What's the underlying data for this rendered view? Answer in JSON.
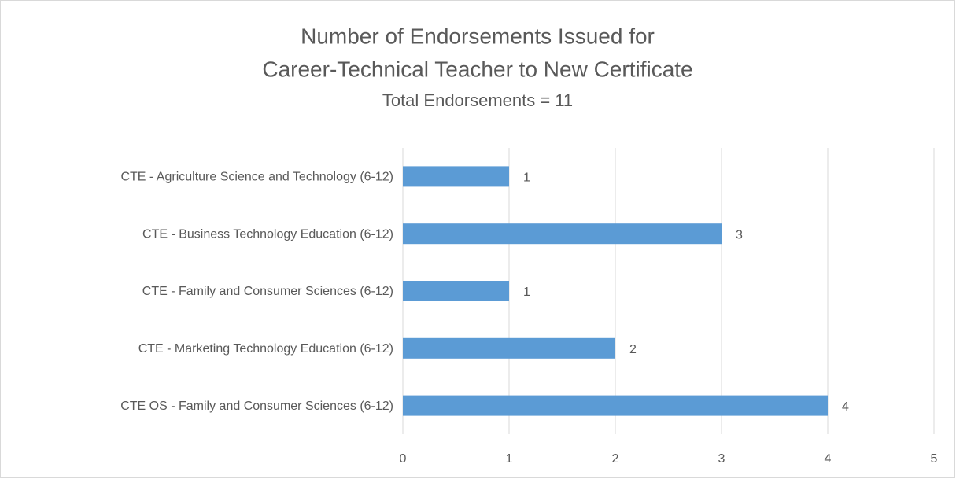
{
  "chart_data": {
    "type": "hbar",
    "title": [
      "Number of Endorsements Issued for",
      "Career-Technical Teacher to New Certificate"
    ],
    "subtitle": "Total Endorsements = 11",
    "categories": [
      "CTE - Agriculture Science and Technology (6-12)",
      "CTE - Business Technology Education (6-12)",
      "CTE - Family and Consumer Sciences (6-12)",
      "CTE - Marketing Technology Education (6-12)",
      "CTE OS - Family and Consumer Sciences (6-12)"
    ],
    "values": [
      1,
      3,
      1,
      2,
      4
    ],
    "color": "#5b9bd5",
    "xlim": [
      0,
      5
    ],
    "xticks": [
      0,
      1,
      2,
      3,
      4,
      5
    ],
    "grid": true,
    "data_labels": true
  }
}
